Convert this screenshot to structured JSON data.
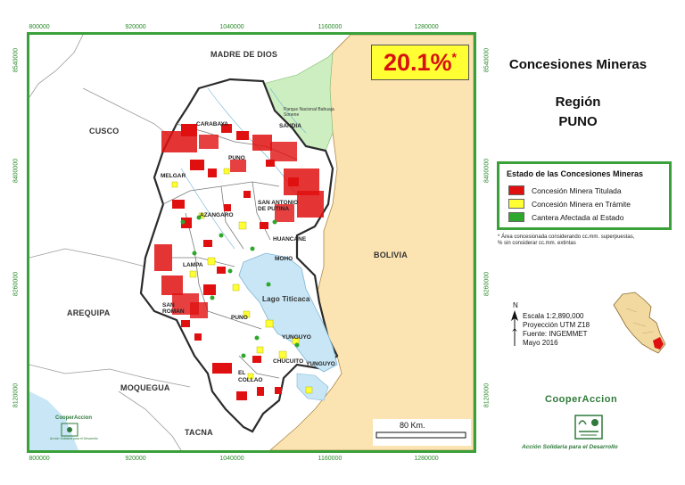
{
  "map": {
    "coords_top": [
      "800000",
      "920000",
      "1040000",
      "1160000",
      "1280000"
    ],
    "coords_bottom": [
      "800000",
      "920000",
      "1040000",
      "1160000",
      "1280000"
    ],
    "coords_left": [
      "8540000",
      "8400000",
      "8260000",
      "8120000"
    ],
    "coords_right": [
      "8540000",
      "8400000",
      "8260000",
      "8120000"
    ],
    "neighbors": {
      "madre_de_dios": "MADRE DE DIOS",
      "cusco": "CUSCO",
      "arequipa": "AREQUIPA",
      "moquegua": "MOQUEGUA",
      "tacna": "TACNA",
      "bolivia": "BOLIVIA"
    },
    "features": {
      "lake": "Lago Titicaca",
      "park": "Parque Nacional Bahuaja Sonene"
    },
    "provinces": {
      "carabaya": "CARABAYA",
      "sandia": "SANDIA",
      "melgar": "MELGAR",
      "puno_prov": "PUNO",
      "azangaro": "AZANGARO",
      "san_antonio_de_putina": "SAN ANTONIO DE PUTINA",
      "huancane": "HUANCANE",
      "moho": "MOHO",
      "lampa": "LAMPA",
      "san_roman": "SAN ROMAN",
      "puno_city": "PUNO",
      "yunguyo_a": "YUNGUYO",
      "yunguyo_b": "YUNGUYO",
      "chucuito": "CHUCUITO",
      "el_collao": "EL COLLAO"
    },
    "scale_bar_label": "80 Km.",
    "colors": {
      "frame": "#3aa03a",
      "region_fill": "#ffffff",
      "bolivia_fill": "#fbe3b2",
      "park_fill": "#cdeec0",
      "lake_fill": "#c8e6f5",
      "titled": "#e01010",
      "pending": "#ffff33",
      "quarry": "#2da82d"
    }
  },
  "highlight": {
    "value": "20.1%",
    "marker": "*"
  },
  "title": {
    "main": "Concesiones Mineras",
    "region_label": "Región",
    "region_name": "PUNO"
  },
  "legend": {
    "title": "Estado de las Concesiones Mineras",
    "items": [
      {
        "label": "Concesión Minera Titulada",
        "color": "#e01010"
      },
      {
        "label": "Concesión Minera en Trámite",
        "color": "#ffff33"
      },
      {
        "label": "Cantera Afectada al Estado",
        "color": "#2da82d"
      }
    ]
  },
  "footnote": {
    "line1": "* Área concesionada considerando cc.mm. superpuestas,",
    "line2": "% sin considerar cc.mm. extintas"
  },
  "info": {
    "north": "N",
    "scale": "Escala 1:2,890,000",
    "projection": "Proyección UTM Z18",
    "source": "Fuente: INGEMMET",
    "date": "Mayo 2016"
  },
  "brand": {
    "name": "CooperAccion",
    "tagline": "Acción Solidaria para el Desarrollo"
  },
  "small_brand": {
    "name": "CooperAccion",
    "tagline": "Acción Solidaria para el Desarrollo"
  }
}
